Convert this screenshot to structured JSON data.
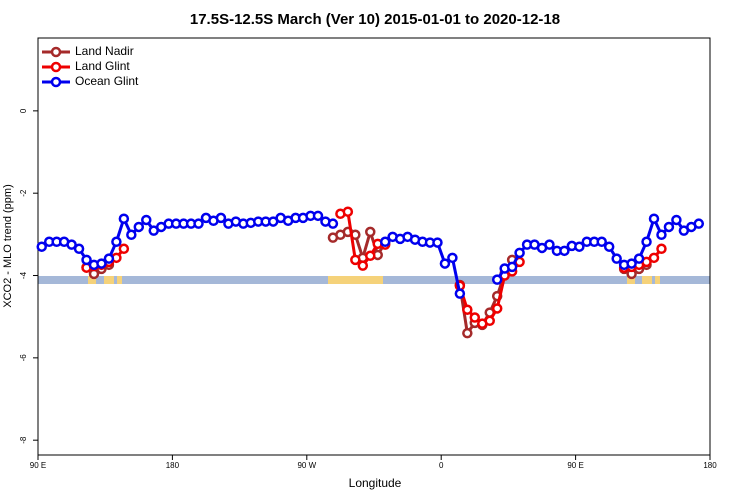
{
  "chart_data": {
    "type": "line",
    "title": "17.5S-12.5S March (Ver 10)   2015-01-01 to 2020-12-18",
    "x_label": "Longitude",
    "y_label": "XCO2 - MLO trend (ppm)",
    "xlim": [
      90,
      540
    ],
    "ylim": [
      -8.36,
      1.77
    ],
    "xticks": [
      {
        "value": 90,
        "label": "90 E"
      },
      180,
      {
        "value": 270,
        "label": "90 W"
      },
      {
        "value": 360,
        "label": "0"
      },
      {
        "value": 450,
        "label": "90 E"
      },
      {
        "value": 540,
        "label": "180"
      }
    ],
    "yticks": [
      0,
      -2,
      -4,
      -6,
      -8
    ],
    "legend": "top-left",
    "x": [
      92.5,
      97.5,
      102.5,
      107.5,
      112.5,
      117.5,
      122.5,
      127.5,
      132.5,
      137.5,
      142.5,
      147.5,
      152.5,
      157.5,
      162.5,
      167.5,
      172.5,
      177.5,
      182.5,
      187.5,
      192.5,
      197.5,
      202.5,
      207.5,
      212.5,
      217.5,
      222.5,
      227.5,
      232.5,
      237.5,
      242.5,
      247.5,
      252.5,
      257.5,
      262.5,
      267.5,
      272.5,
      277.5,
      282.5,
      287.5,
      292.5,
      297.5,
      302.5,
      307.5,
      312.5,
      317.5,
      322.5,
      327.5,
      332.5,
      337.5,
      342.5,
      347.5,
      352.5,
      357.5,
      362.5,
      367.5,
      372.5,
      377.5,
      382.5,
      387.5,
      392.5,
      397.5,
      402.5,
      407.5,
      412.5,
      417.5,
      422.5,
      427.5,
      432.5,
      437.5,
      442.5,
      447.5,
      452.5,
      457.5,
      462.5,
      467.5,
      472.5,
      477.5,
      482.5,
      487.5,
      492.5,
      497.5,
      502.5,
      507.5,
      512.5,
      517.5,
      522.5,
      527.5,
      532.5
    ],
    "series": [
      {
        "name": "Land Nadir",
        "color": "#a52a2a",
        "values": [
          null,
          null,
          null,
          null,
          null,
          null,
          -3.8,
          -3.96,
          -3.84,
          -3.74,
          null,
          null,
          null,
          null,
          null,
          null,
          null,
          null,
          null,
          null,
          null,
          null,
          null,
          null,
          null,
          null,
          null,
          null,
          null,
          null,
          null,
          null,
          null,
          null,
          null,
          null,
          null,
          null,
          null,
          -3.08,
          -3.01,
          -2.94,
          -3.01,
          -3.57,
          -2.94,
          -3.5,
          -3.2,
          null,
          null,
          null,
          null,
          null,
          null,
          null,
          null,
          null,
          -4.23,
          -5.4,
          -5.15,
          -5.2,
          -4.9,
          -4.5,
          -3.95,
          -3.62,
          null,
          null,
          null,
          null,
          null,
          null,
          null,
          null,
          null,
          null,
          null,
          null,
          null,
          null,
          -3.84,
          -3.96,
          -3.84,
          -3.74,
          null,
          null,
          null,
          null,
          null,
          null,
          null
        ]
      },
      {
        "name": "Land Glint",
        "color": "#ee0000",
        "values": [
          null,
          null,
          null,
          null,
          null,
          null,
          -3.81,
          -3.77,
          -3.74,
          -3.67,
          -3.57,
          -3.35,
          null,
          null,
          null,
          null,
          null,
          null,
          null,
          null,
          null,
          null,
          null,
          null,
          null,
          null,
          null,
          null,
          null,
          null,
          null,
          null,
          null,
          null,
          null,
          null,
          null,
          null,
          null,
          null,
          -2.5,
          -2.45,
          -3.62,
          -3.76,
          -3.52,
          -3.23,
          -3.25,
          null,
          null,
          null,
          null,
          null,
          null,
          null,
          null,
          null,
          -4.25,
          -4.83,
          -5.02,
          -5.17,
          -5.1,
          -4.8,
          -4.0,
          -3.9,
          -3.67,
          null,
          null,
          null,
          null,
          null,
          null,
          null,
          null,
          null,
          null,
          null,
          null,
          null,
          -3.81,
          -3.79,
          -3.74,
          -3.67,
          -3.57,
          -3.35,
          null,
          null,
          null,
          null,
          null
        ]
      },
      {
        "name": "Ocean Glint",
        "color": "#0000ee",
        "values": [
          -3.3,
          -3.18,
          -3.18,
          -3.18,
          -3.25,
          -3.35,
          -3.62,
          -3.74,
          -3.71,
          -3.59,
          -3.18,
          -2.62,
          -3.01,
          -2.82,
          -2.65,
          -2.91,
          -2.82,
          -2.74,
          -2.74,
          -2.74,
          -2.74,
          -2.74,
          -2.6,
          -2.67,
          -2.6,
          -2.74,
          -2.69,
          -2.74,
          -2.72,
          -2.69,
          -2.69,
          -2.69,
          -2.6,
          -2.67,
          -2.6,
          -2.6,
          -2.55,
          -2.55,
          -2.69,
          -2.74,
          null,
          null,
          null,
          null,
          null,
          null,
          -3.18,
          -3.06,
          -3.11,
          -3.06,
          -3.13,
          -3.18,
          -3.2,
          -3.2,
          -3.71,
          -3.57,
          -4.44,
          null,
          null,
          null,
          null,
          -4.1,
          -3.83,
          -3.79,
          -3.45,
          -3.25,
          -3.25,
          -3.33,
          -3.25,
          -3.4,
          -3.4,
          -3.28,
          -3.3,
          -3.18,
          -3.18,
          -3.18,
          -3.3,
          -3.59,
          -3.74,
          -3.71,
          -3.59,
          -3.18,
          -2.62,
          -3.01,
          -2.82,
          -2.65,
          -2.91,
          -2.82,
          -2.74
        ]
      }
    ]
  }
}
